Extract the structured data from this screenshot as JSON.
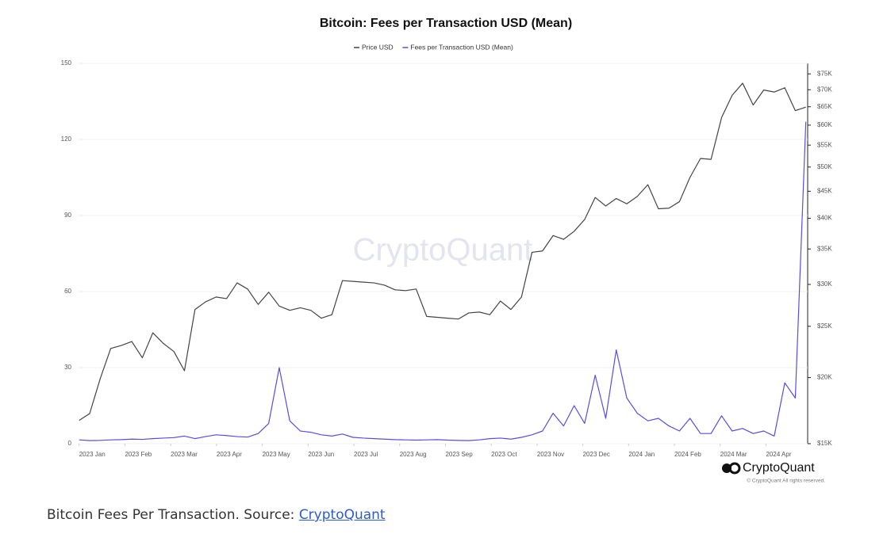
{
  "chart_data": {
    "type": "line",
    "title": "Bitcoin: Fees per Transaction USD (Mean)",
    "x": [
      0,
      0.23,
      0.46,
      0.69,
      0.92,
      1.15,
      1.38,
      1.61,
      1.84,
      2.07,
      2.3,
      2.53,
      2.76,
      2.99,
      3.22,
      3.45,
      3.68,
      3.91,
      4.14,
      4.37,
      4.6,
      4.83,
      5.06,
      5.29,
      5.52,
      5.75,
      5.98,
      6.21,
      6.44,
      6.67,
      6.9,
      7.13,
      7.36,
      7.59,
      7.82,
      8.05,
      8.28,
      8.51,
      8.74,
      8.97,
      9.2,
      9.43,
      9.66,
      9.89,
      10.12,
      10.35,
      10.58,
      10.81,
      11.04,
      11.27,
      11.5,
      11.73,
      11.96,
      12.19,
      12.42,
      12.65,
      12.88,
      13.11,
      13.34,
      13.57,
      13.8,
      14.03,
      14.26,
      14.49,
      14.72,
      14.95,
      15.18,
      15.41,
      15.64,
      15.87
    ],
    "series": [
      {
        "name": "Price USD",
        "color": "#444444",
        "axis": "y2",
        "values": [
          16600,
          17100,
          19900,
          22700,
          23000,
          23400,
          21800,
          24300,
          23200,
          22400,
          20600,
          26900,
          27800,
          28400,
          28200,
          30200,
          29400,
          27500,
          29000,
          27300,
          26800,
          27100,
          26800,
          25900,
          26300,
          30500,
          30400,
          30300,
          30200,
          29900,
          29300,
          29200,
          29400,
          26100,
          26000,
          25900,
          25800,
          26500,
          26600,
          26300,
          27900,
          26900,
          28400,
          34500,
          34700,
          37100,
          36500,
          37800,
          39800,
          43800,
          42200,
          43600,
          42600,
          44000,
          46300,
          41700,
          41800,
          43000,
          47800,
          51900,
          51700,
          62000,
          68300,
          72000,
          65500,
          69900,
          69300,
          70600,
          63900,
          64900
        ]
      },
      {
        "name": "Fees per Transaction USD (Mean)",
        "color": "#5a4be6",
        "values": [
          1.5,
          1.2,
          1.3,
          1.5,
          1.6,
          1.8,
          1.7,
          2.0,
          2.2,
          2.4,
          3.0,
          2.0,
          2.8,
          3.5,
          3.2,
          2.8,
          2.6,
          4.0,
          8,
          30,
          9,
          5,
          4.5,
          3.5,
          3.0,
          3.8,
          2.5,
          2.2,
          2.0,
          1.8,
          1.6,
          1.5,
          1.4,
          1.5,
          1.6,
          1.4,
          1.3,
          1.2,
          1.5,
          2.0,
          2.2,
          1.8,
          2.5,
          3.5,
          5,
          12,
          7,
          15,
          8,
          27,
          10,
          37,
          18,
          12,
          9,
          10,
          7,
          5,
          10,
          4,
          4,
          11,
          5,
          6,
          4,
          5,
          3,
          24,
          18,
          127
        ]
      }
    ],
    "xlim": [
      -0.03,
      15.91
    ],
    "xticks": [
      {
        "value": 0,
        "label": "2023 Jan"
      },
      {
        "value": 1,
        "label": "2023 Feb"
      },
      {
        "value": 2,
        "label": "2023 Mar"
      },
      {
        "value": 3,
        "label": "2023 Apr"
      },
      {
        "value": 4,
        "label": "2023 May"
      },
      {
        "value": 5,
        "label": "2023 Jun"
      },
      {
        "value": 6,
        "label": "2023 Jul"
      },
      {
        "value": 7,
        "label": "2023 Aug"
      },
      {
        "value": 8,
        "label": "2023 Sep"
      },
      {
        "value": 9,
        "label": "2023 Oct"
      },
      {
        "value": 10,
        "label": "2023 Nov"
      },
      {
        "value": 11,
        "label": "2023 Dec"
      },
      {
        "value": 12,
        "label": "2024 Jan"
      },
      {
        "value": 13,
        "label": "2024 Feb"
      },
      {
        "value": 14,
        "label": "2024 Mar"
      },
      {
        "value": 15,
        "label": "2024 Apr"
      }
    ],
    "ylim": [
      0,
      150
    ],
    "yticks": [
      0,
      30,
      60,
      90,
      120,
      150
    ],
    "y2lim": [
      15000,
      78500
    ],
    "y2log": true,
    "y2ticks": [
      {
        "value": 15000,
        "label": "$15K"
      },
      {
        "value": 20000,
        "label": "$20K"
      },
      {
        "value": 25000,
        "label": "$25K"
      },
      {
        "value": 30000,
        "label": "$30K"
      },
      {
        "value": 35000,
        "label": "$35K"
      },
      {
        "value": 40000,
        "label": "$40K"
      },
      {
        "value": 45000,
        "label": "$45K"
      },
      {
        "value": 50000,
        "label": "$50K"
      },
      {
        "value": 55000,
        "label": "$55K"
      },
      {
        "value": 60000,
        "label": "$60K"
      },
      {
        "value": 65000,
        "label": "$65K"
      },
      {
        "value": 70000,
        "label": "$70K"
      },
      {
        "value": 75000,
        "label": "$75K"
      }
    ],
    "grid": true,
    "legend": "top"
  },
  "watermark": "CryptoQuant",
  "logo": "CryptoQuant",
  "copyright": "© CryptoQuant All rights reserved.",
  "caption": {
    "text": "Bitcoin Fees Per Transaction. Source: ",
    "link": "CryptoQuant"
  }
}
